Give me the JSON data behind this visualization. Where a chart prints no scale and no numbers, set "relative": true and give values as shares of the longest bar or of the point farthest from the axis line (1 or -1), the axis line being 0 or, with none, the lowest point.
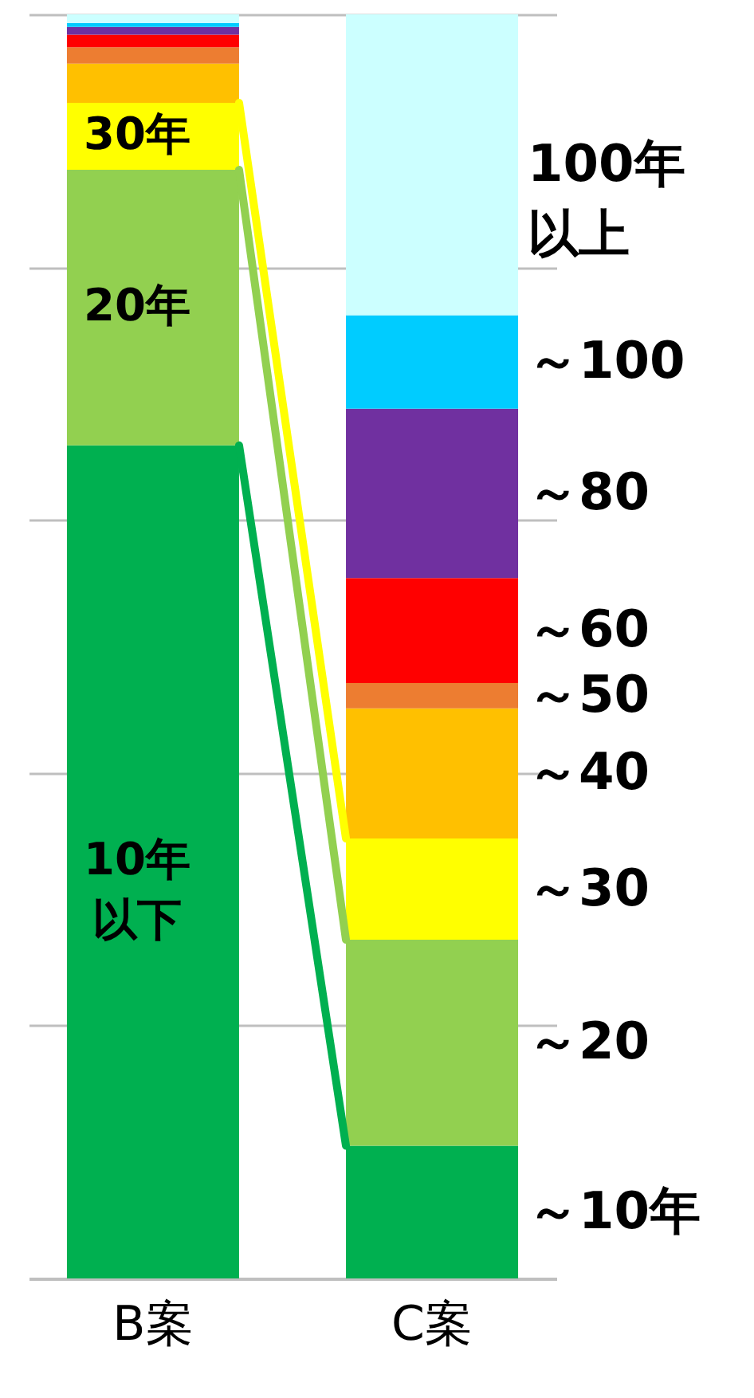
{
  "chart_data": {
    "type": "bar",
    "stacked": true,
    "relative": true,
    "grid": "y",
    "categories": [
      "B案",
      "C案"
    ],
    "series": [
      {
        "name": "～10年",
        "color": "#00b050",
        "values": [
          0.659,
          0.105
        ]
      },
      {
        "name": "～20",
        "color": "#92d050",
        "values": [
          0.218,
          0.163
        ]
      },
      {
        "name": "～30",
        "color": "#ffff00",
        "values": [
          0.053,
          0.08
        ]
      },
      {
        "name": "～40",
        "color": "#ffc000",
        "values": [
          0.031,
          0.103
        ]
      },
      {
        "name": "～50",
        "color": "#ed7d31",
        "values": [
          0.013,
          0.02
        ]
      },
      {
        "name": "～60",
        "color": "#ff0000",
        "values": [
          0.01,
          0.083
        ]
      },
      {
        "name": "～80",
        "color": "#7030a0",
        "values": [
          0.006,
          0.134
        ]
      },
      {
        "name": "～100",
        "color": "#00ccff",
        "values": [
          0.003,
          0.074
        ]
      },
      {
        "name": "100年以上",
        "color": "#ccffff",
        "values": [
          0.007,
          0.238
        ]
      }
    ],
    "annotations": [
      "10年以下",
      "20年",
      "30年"
    ]
  }
}
